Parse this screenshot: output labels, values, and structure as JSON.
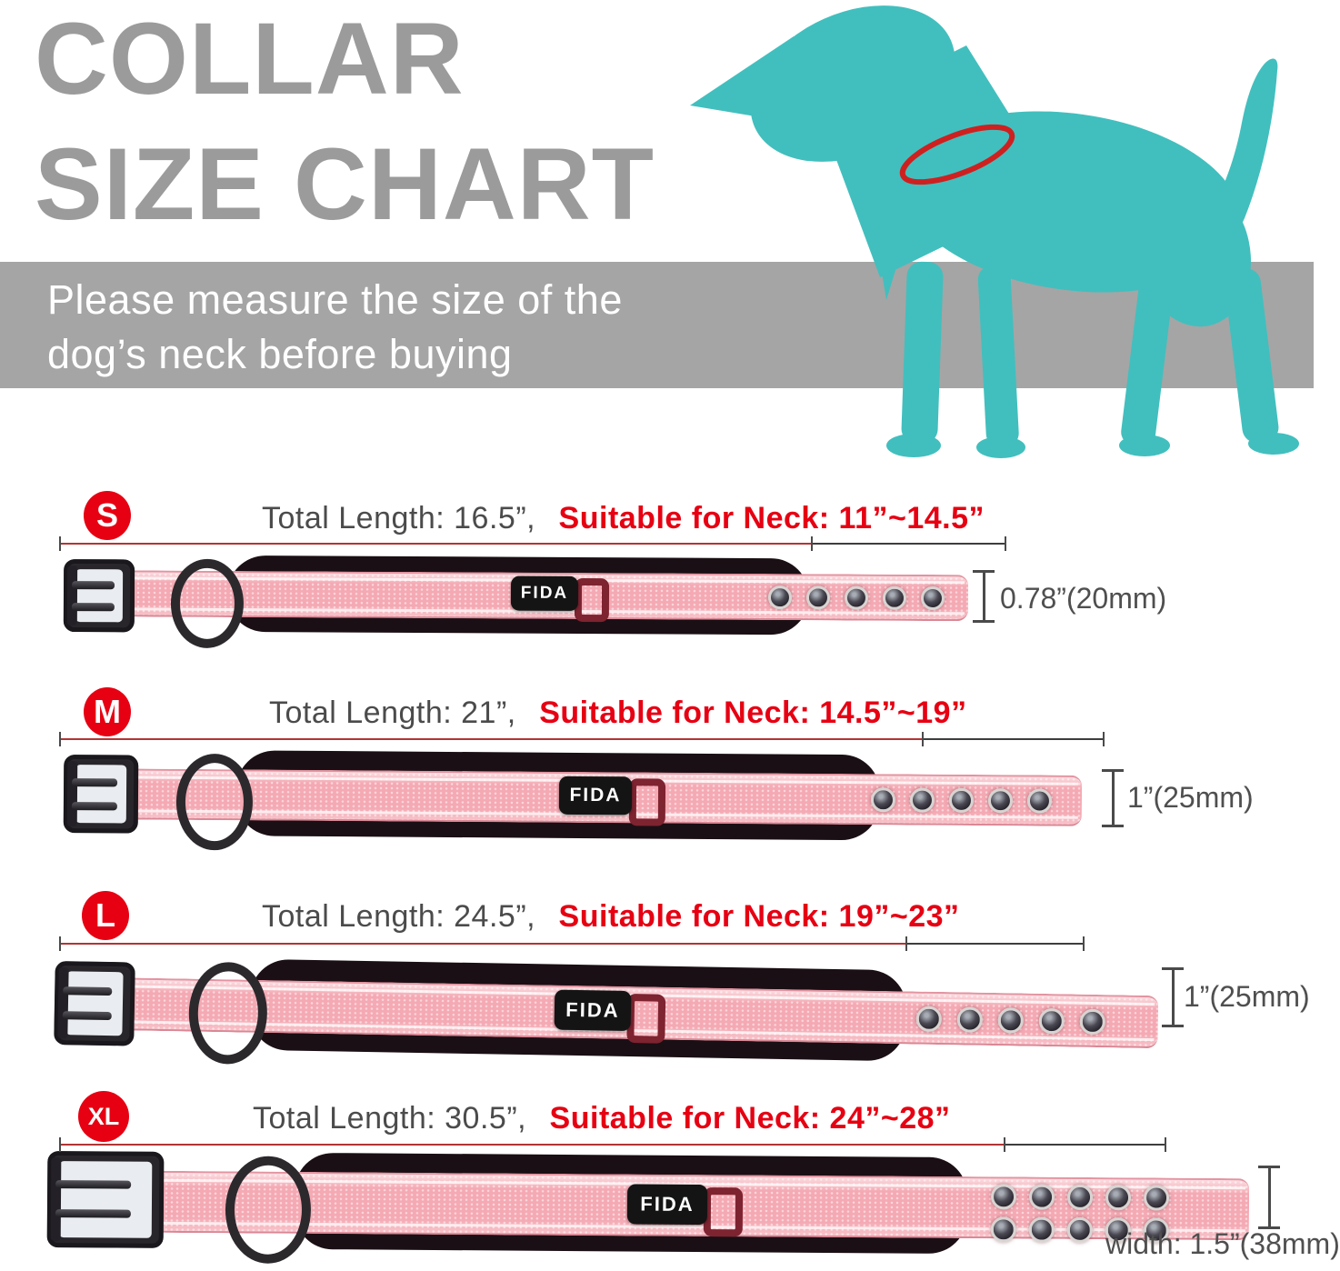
{
  "title": {
    "line1": "COLLAR",
    "line2": "SIZE CHART"
  },
  "banner": {
    "line1": "Please measure the size of the",
    "line2": "dog’s neck before buying"
  },
  "brand_tag": "FIDA",
  "colors": {
    "accent_red": "#e60012",
    "title_gray": "#9b9b9b",
    "banner_gray": "#a5a5a5",
    "dog_teal": "#41bfbe",
    "collar_pink": "#f4a9b3",
    "collar_outline_red": "#cf2020"
  },
  "rows": [
    {
      "size": "S",
      "total_length": "Total Length: 16.5”,",
      "neck": "Suitable for Neck: 11”~14.5”",
      "width": "0.78”(20mm)",
      "eyelet_count": 5
    },
    {
      "size": "M",
      "total_length": "Total Length: 21”,",
      "neck": "Suitable for Neck: 14.5”~19”",
      "width": "1”(25mm)",
      "eyelet_count": 5
    },
    {
      "size": "L",
      "total_length": "Total Length: 24.5”,",
      "neck": "Suitable for Neck: 19”~23”",
      "width": "1”(25mm)",
      "eyelet_count": 5
    },
    {
      "size": "XL",
      "total_length": "Total Length: 30.5”,",
      "neck": "Suitable for Neck: 24”~28”",
      "width": "width: 1.5”(38mm)",
      "eyelet_count": 10
    }
  ]
}
